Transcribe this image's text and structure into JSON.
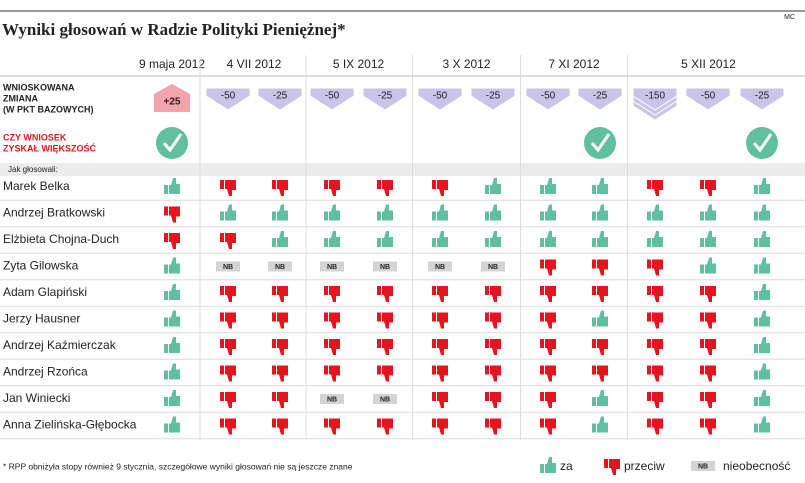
{
  "header": {
    "title": "Wyniki głosowań w Radzie Polityki Pieniężnej*",
    "credit": "MC"
  },
  "row_labels": {
    "change": [
      "WNIOSKOWANA",
      "ZMIANA",
      "(W PKT BAZOWYCH)"
    ],
    "passed": [
      "CZY WNIOSEK",
      "ZYSKAŁ WIĘKSZOŚĆ"
    ],
    "voters": "Jak głosowali:"
  },
  "meetings": [
    {
      "date": "9 maja 2012",
      "changes": [
        "+25"
      ],
      "passed": [
        true
      ]
    },
    {
      "date": "4 VII 2012",
      "changes": [
        "-50",
        "-25"
      ],
      "passed": [
        false,
        false
      ]
    },
    {
      "date": "5 IX 2012",
      "changes": [
        "-50",
        "-25"
      ],
      "passed": [
        false,
        false
      ]
    },
    {
      "date": "3 X 2012",
      "changes": [
        "-50",
        "-25"
      ],
      "passed": [
        false,
        false
      ]
    },
    {
      "date": "7 XI 2012",
      "changes": [
        "-50",
        "-25"
      ],
      "passed": [
        false,
        true
      ]
    },
    {
      "date": "5 XII 2012",
      "changes": [
        "-150",
        "-50",
        "-25"
      ],
      "passed": [
        false,
        false,
        true
      ]
    }
  ],
  "members": [
    {
      "name": "Marek Belka",
      "votes": [
        "za",
        "przeciw",
        "przeciw",
        "przeciw",
        "przeciw",
        "przeciw",
        "za",
        "za",
        "za",
        "przeciw",
        "przeciw",
        "za"
      ]
    },
    {
      "name": "Andrzej Bratkowski",
      "votes": [
        "przeciw",
        "za",
        "za",
        "za",
        "za",
        "za",
        "za",
        "za",
        "za",
        "za",
        "za",
        "za"
      ]
    },
    {
      "name": "Elżbieta Chojna-Duch",
      "votes": [
        "przeciw",
        "przeciw",
        "za",
        "za",
        "za",
        "za",
        "za",
        "za",
        "za",
        "za",
        "za",
        "za"
      ]
    },
    {
      "name": "Zyta Gilowska",
      "votes": [
        "za",
        "NB",
        "NB",
        "NB",
        "NB",
        "NB",
        "NB",
        "przeciw",
        "przeciw",
        "przeciw",
        "za",
        "za"
      ]
    },
    {
      "name": "Adam Glapiński",
      "votes": [
        "za",
        "przeciw",
        "przeciw",
        "przeciw",
        "przeciw",
        "przeciw",
        "przeciw",
        "przeciw",
        "przeciw",
        "przeciw",
        "przeciw",
        "za"
      ]
    },
    {
      "name": "Jerzy Hausner",
      "votes": [
        "za",
        "przeciw",
        "przeciw",
        "przeciw",
        "przeciw",
        "przeciw",
        "przeciw",
        "przeciw",
        "za",
        "przeciw",
        "przeciw",
        "za"
      ]
    },
    {
      "name": "Andrzej Kaźmierczak",
      "votes": [
        "za",
        "przeciw",
        "przeciw",
        "przeciw",
        "przeciw",
        "przeciw",
        "przeciw",
        "przeciw",
        "przeciw",
        "przeciw",
        "przeciw",
        "za"
      ]
    },
    {
      "name": "Andrzej Rzońca",
      "votes": [
        "za",
        "przeciw",
        "przeciw",
        "przeciw",
        "przeciw",
        "przeciw",
        "przeciw",
        "przeciw",
        "przeciw",
        "przeciw",
        "przeciw",
        "za"
      ]
    },
    {
      "name": "Jan Winiecki",
      "votes": [
        "za",
        "przeciw",
        "przeciw",
        "NB",
        "NB",
        "przeciw",
        "przeciw",
        "przeciw",
        "za",
        "przeciw",
        "przeciw",
        "za"
      ]
    },
    {
      "name": "Anna Zielińska-Głębocka",
      "votes": [
        "za",
        "przeciw",
        "przeciw",
        "przeciw",
        "przeciw",
        "przeciw",
        "przeciw",
        "przeciw",
        "za",
        "przeciw",
        "przeciw",
        "za"
      ]
    }
  ],
  "legend": [
    {
      "key": "za",
      "label": "za"
    },
    {
      "key": "przeciw",
      "label": "przeciw"
    },
    {
      "key": "NB",
      "label": "nieobecność"
    }
  ],
  "footnote": "* RPP obniżyła stopy również 9 stycznia, szczegółowe wyniki głosowań nie są jeszcze znane"
}
